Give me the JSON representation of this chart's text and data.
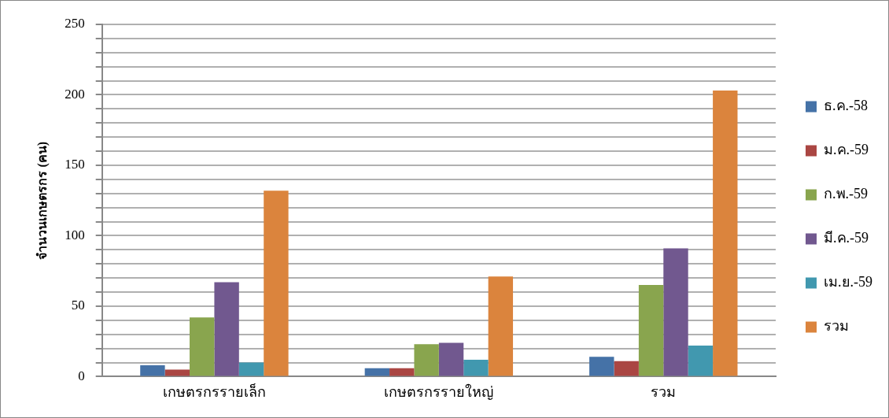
{
  "chart_data": {
    "type": "bar",
    "ylabel": "จำนวนเกษตรกร (คน)",
    "categories": [
      "เกษตรกรรายเล็ก",
      "เกษตรกรรายใหญ่",
      "รวม"
    ],
    "series": [
      {
        "name": "ธ.ค.-58",
        "color": "#4572a7",
        "values": [
          8,
          6,
          14
        ]
      },
      {
        "name": "ม.ค.-59",
        "color": "#aa4643",
        "values": [
          5,
          6,
          11
        ]
      },
      {
        "name": "ก.พ.-59",
        "color": "#89a54e",
        "values": [
          42,
          23,
          65
        ]
      },
      {
        "name": "มี.ค.-59",
        "color": "#71588f",
        "values": [
          67,
          24,
          91
        ]
      },
      {
        "name": "เม.ย.-59",
        "color": "#4198af",
        "values": [
          10,
          12,
          22
        ]
      },
      {
        "name": "รวม",
        "color": "#db843d",
        "values": [
          132,
          71,
          203
        ]
      }
    ],
    "ylim": [
      0,
      250
    ],
    "yticks": [
      0,
      {
        "value": 10,
        "label": null
      },
      {
        "value": 20,
        "label": null
      },
      {
        "value": 30,
        "label": null
      },
      {
        "value": 40,
        "label": null
      },
      50,
      {
        "value": 60,
        "label": null
      },
      {
        "value": 70,
        "label": null
      },
      {
        "value": 80,
        "label": null
      },
      {
        "value": 90,
        "label": null
      },
      100,
      {
        "value": 110,
        "label": null
      },
      {
        "value": 120,
        "label": null
      },
      {
        "value": 130,
        "label": null
      },
      {
        "value": 140,
        "label": null
      },
      150,
      {
        "value": 160,
        "label": null
      },
      {
        "value": 170,
        "label": null
      },
      {
        "value": 180,
        "label": null
      },
      {
        "value": 190,
        "label": null
      },
      200,
      {
        "value": 210,
        "label": null
      },
      {
        "value": 220,
        "label": null
      },
      {
        "value": 230,
        "label": null
      },
      {
        "value": 240,
        "label": null
      },
      250
    ],
    "grid": "y",
    "legend": "right"
  }
}
